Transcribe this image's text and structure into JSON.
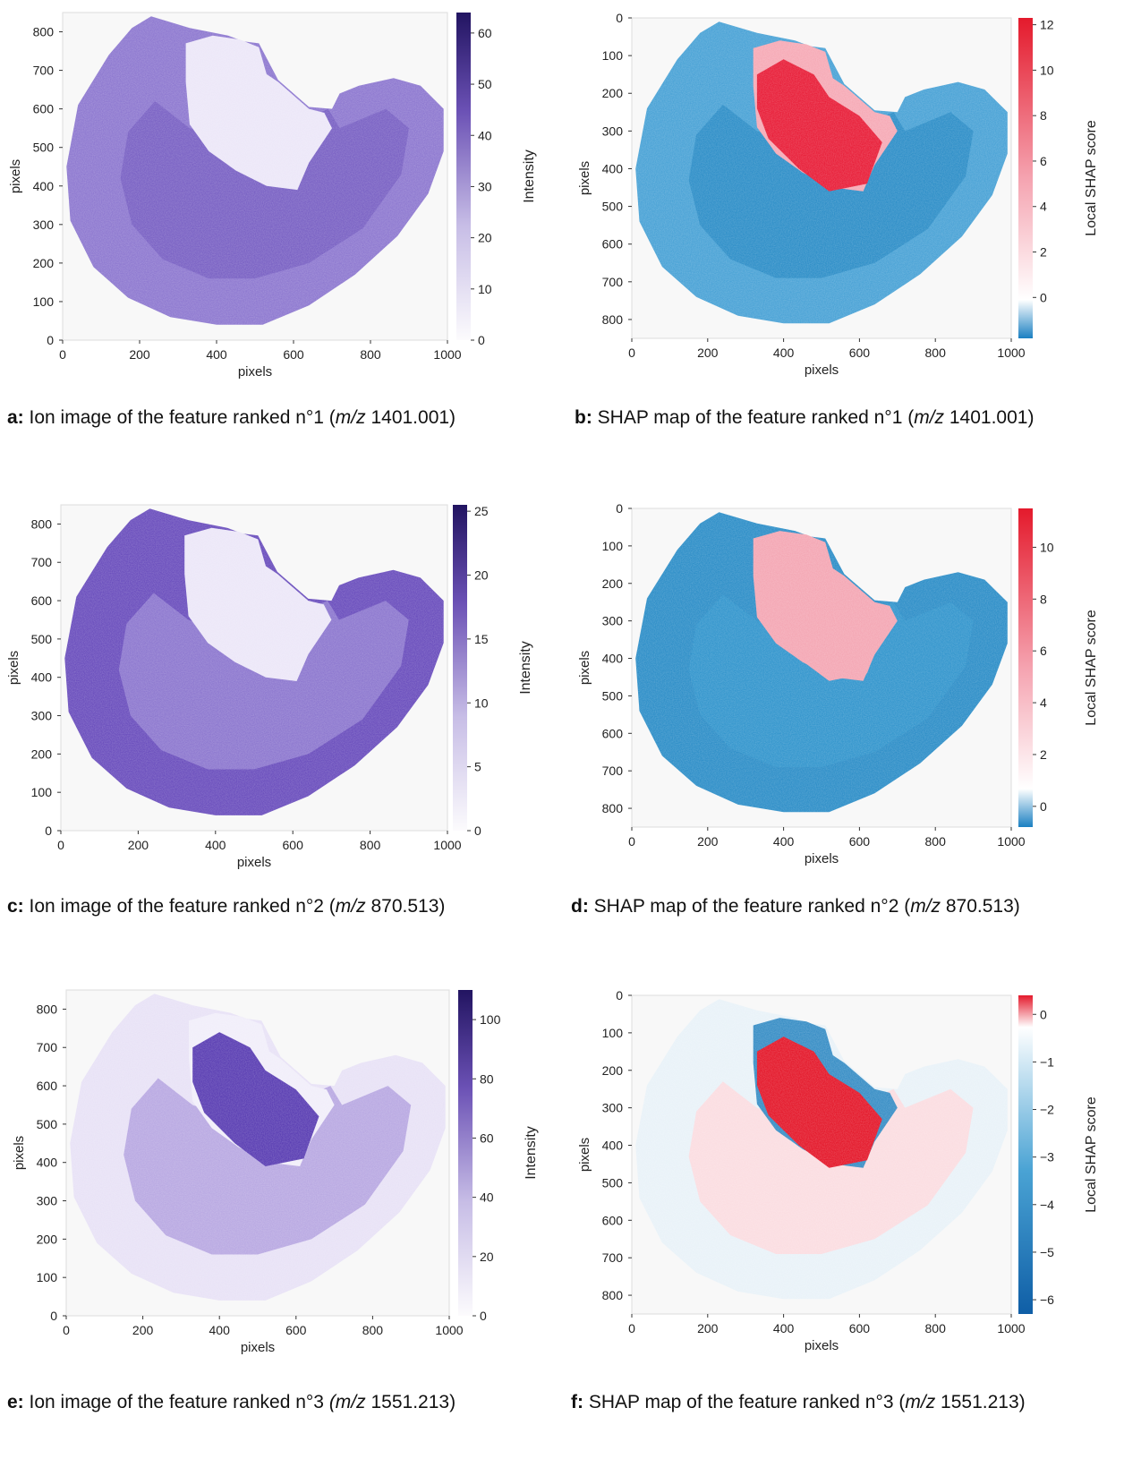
{
  "figure": {
    "captions": [
      {
        "letter": "a:",
        "text": "Ion image of the feature ranked n°1 (",
        "mz_italic": "m/z",
        "mz_value": " 1401.001)"
      },
      {
        "letter": "b:",
        "text": "SHAP map of the feature ranked n°1 (",
        "mz_italic": "m/z",
        "mz_value": " 1401.001)"
      },
      {
        "letter": "c:",
        "text": "Ion image of the feature ranked n°2 (",
        "mz_italic": "m/z",
        "mz_value": " 870.513)"
      },
      {
        "letter": "d:",
        "text": "SHAP map of the feature ranked n°2 (",
        "mz_italic": "m/z",
        "mz_value": " 870.513)"
      },
      {
        "letter": "e:",
        "text": "Ion image of the feature ranked n°3 ",
        "mz_italic": "(m/z",
        "mz_value": " 1551.213)"
      },
      {
        "letter": "f:",
        "text": "SHAP map of the feature ranked n°3 (",
        "mz_italic": "m/z",
        "mz_value": " 1551.213)"
      }
    ],
    "colors": {
      "purple_dark": "#2a1a6e",
      "purple_mid": "#6a4fb8",
      "purple_light": "#b8a8e0",
      "purple_pale": "#f3f0fb",
      "shap_red": "#e41a2c",
      "shap_pink": "#f4b6bf",
      "shap_white": "#ffffff",
      "shap_blue": "#2d8ec9",
      "shap_blue_dark": "#1565a8"
    }
  },
  "chart_data": [
    {
      "id": "a",
      "type": "heatmap",
      "kind": "ion",
      "xlabel": "pixels",
      "ylabel": "pixels",
      "xticks": [
        "0",
        "200",
        "400",
        "600",
        "800",
        "1000"
      ],
      "yticks": [
        "0",
        "100",
        "200",
        "300",
        "400",
        "500",
        "600",
        "700",
        "800"
      ],
      "y_direction": "up",
      "xlim": [
        0,
        1000
      ],
      "ylim": [
        0,
        850
      ],
      "colorbar": {
        "label": "Intensity",
        "ticks": [
          "0",
          "10",
          "20",
          "30",
          "40",
          "50",
          "60"
        ],
        "range": [
          0,
          64
        ],
        "cmap": "purples"
      },
      "pattern": {
        "outer": "#8e79d0",
        "inner": "#7a62c4",
        "cavity": "#ece7f8",
        "focus": null
      }
    },
    {
      "id": "b",
      "type": "heatmap",
      "kind": "shap",
      "xlabel": "pixels",
      "ylabel": "pixels",
      "xticks": [
        "0",
        "200",
        "400",
        "600",
        "800",
        "1000"
      ],
      "yticks": [
        "0",
        "100",
        "200",
        "300",
        "400",
        "500",
        "600",
        "700",
        "800"
      ],
      "y_direction": "down",
      "xlim": [
        0,
        1000
      ],
      "ylim": [
        850,
        0
      ],
      "colorbar": {
        "label": "Local SHAP score",
        "ticks": [
          "0",
          "2",
          "4",
          "6",
          "8",
          "10",
          "12"
        ],
        "range": [
          -1.8,
          12.3
        ],
        "cmap": "shap"
      },
      "pattern": {
        "outer": "#4ba3d6",
        "inner": "#2f8fc8",
        "cavity": "#f6aab6",
        "focus": "#e8203a"
      }
    },
    {
      "id": "c",
      "type": "heatmap",
      "kind": "ion",
      "xlabel": "pixels",
      "ylabel": "pixels",
      "xticks": [
        "0",
        "200",
        "400",
        "600",
        "800",
        "1000"
      ],
      "yticks": [
        "0",
        "100",
        "200",
        "300",
        "400",
        "500",
        "600",
        "700",
        "800"
      ],
      "y_direction": "up",
      "xlim": [
        0,
        1000
      ],
      "ylim": [
        0,
        850
      ],
      "colorbar": {
        "label": "Intensity",
        "ticks": [
          "0",
          "5",
          "10",
          "15",
          "20",
          "25"
        ],
        "range": [
          0,
          25.5
        ],
        "cmap": "purples"
      },
      "pattern": {
        "outer": "#6b4fbd",
        "inner": "#8d78cf",
        "cavity": "#ece7f8",
        "focus": null
      }
    },
    {
      "id": "d",
      "type": "heatmap",
      "kind": "shap",
      "xlabel": "pixels",
      "ylabel": "pixels",
      "xticks": [
        "0",
        "200",
        "400",
        "600",
        "800",
        "1000"
      ],
      "yticks": [
        "0",
        "100",
        "200",
        "300",
        "400",
        "500",
        "600",
        "700",
        "800"
      ],
      "y_direction": "down",
      "xlim": [
        0,
        1000
      ],
      "ylim": [
        850,
        0
      ],
      "colorbar": {
        "label": "Local SHAP score",
        "ticks": [
          "0",
          "2",
          "4",
          "6",
          "8",
          "10"
        ],
        "range": [
          -0.8,
          11.5
        ],
        "cmap": "shap"
      },
      "pattern": {
        "outer": "#2f8fc8",
        "inner": "#3496cd",
        "cavity": "#f4a7b4",
        "focus": "#f4a7b4"
      }
    },
    {
      "id": "e",
      "type": "heatmap",
      "kind": "ion",
      "xlabel": "pixels",
      "ylabel": "pixels",
      "xticks": [
        "0",
        "200",
        "400",
        "600",
        "800",
        "1000"
      ],
      "yticks": [
        "0",
        "100",
        "200",
        "300",
        "400",
        "500",
        "600",
        "700",
        "800"
      ],
      "y_direction": "up",
      "xlim": [
        0,
        1000
      ],
      "ylim": [
        0,
        850
      ],
      "colorbar": {
        "label": "Intensity",
        "ticks": [
          "0",
          "20",
          "40",
          "60",
          "80",
          "100"
        ],
        "range": [
          0,
          110
        ],
        "cmap": "purples"
      },
      "pattern": {
        "outer": "#e8e2f6",
        "inner": "#b9a9e2",
        "cavity": "#f1eefa",
        "focus": "#5b3fb3"
      }
    },
    {
      "id": "f",
      "type": "heatmap",
      "kind": "shap",
      "xlabel": "pixels",
      "ylabel": "pixels",
      "xticks": [
        "0",
        "200",
        "400",
        "600",
        "800",
        "1000"
      ],
      "yticks": [
        "0",
        "100",
        "200",
        "300",
        "400",
        "500",
        "600",
        "700",
        "800"
      ],
      "y_direction": "down",
      "xlim": [
        0,
        1000
      ],
      "ylim": [
        850,
        0
      ],
      "colorbar": {
        "label": "Local SHAP score",
        "ticks": [
          "0",
          "−1",
          "−2",
          "−3",
          "−4",
          "−5",
          "−6"
        ],
        "range": [
          -6.3,
          0.4
        ],
        "cmap": "shap-neg"
      },
      "pattern": {
        "outer": "#e9f2f8",
        "inner": "#fbdde1",
        "cavity": "#3a8fc6",
        "focus": "#e41a2c"
      }
    }
  ]
}
